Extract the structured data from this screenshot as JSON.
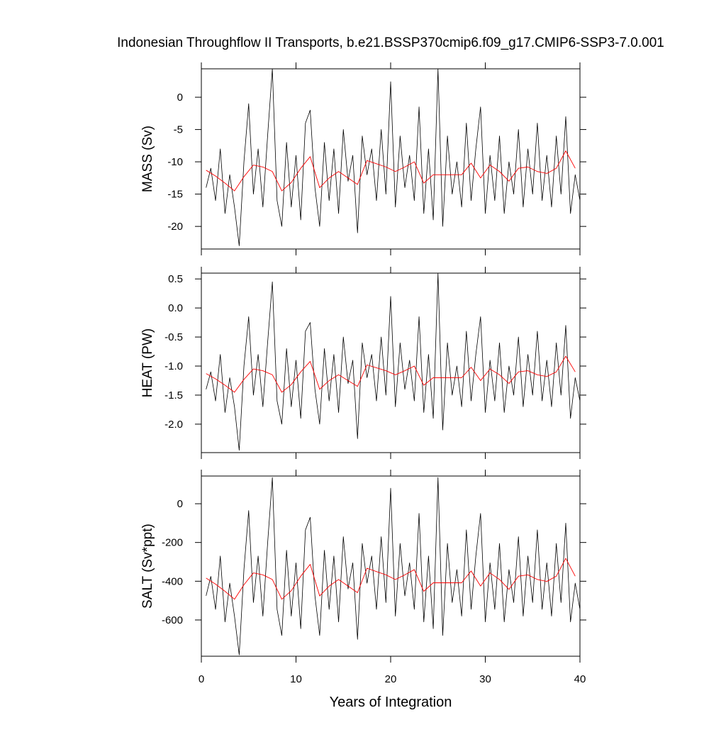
{
  "chart_data": [
    {
      "type": "line",
      "title": "Indonesian Throughflow II Transports, b.e21.BSSP370cmip6.f09_g17.CMIP6-SSP3-7.0.001",
      "ylabel": "MASS (Sv)",
      "xlim": [
        0,
        40
      ],
      "xticks": [
        0,
        10,
        20,
        30,
        40
      ],
      "ylim": [
        -23.5,
        4.4
      ],
      "yticks": [
        -20,
        -15,
        -10,
        -5,
        0
      ],
      "series": [
        {
          "color": "#000000",
          "x": [
            0.5,
            1,
            1.5,
            2,
            2.5,
            3,
            3.5,
            4,
            4.5,
            5,
            5.5,
            6,
            6.5,
            7,
            7.5,
            8,
            8.5,
            9,
            9.5,
            10,
            10.5,
            11,
            11.5,
            12,
            12.5,
            13,
            13.5,
            14,
            14.5,
            15,
            15.5,
            16,
            16.5,
            17,
            17.5,
            18,
            18.5,
            19,
            19.5,
            20,
            20.5,
            21,
            21.5,
            22,
            22.5,
            23,
            23.5,
            24,
            24.5,
            25,
            25.5,
            26,
            26.5,
            27,
            27.5,
            28,
            28.5,
            29,
            29.5,
            30,
            30.5,
            31,
            31.5,
            32,
            32.5,
            33,
            33.5,
            34,
            34.5,
            35,
            35.5,
            36,
            36.5,
            37,
            37.5,
            38,
            38.5,
            39,
            39.5,
            40
          ],
          "values": [
            -14,
            -11,
            -16,
            -8,
            -18,
            -12,
            -17,
            -23,
            -10,
            -1,
            -15,
            -8,
            -17,
            -6,
            4.4,
            -16,
            -20,
            -7,
            -17,
            -9,
            -19,
            -4,
            -2,
            -14,
            -20,
            -7,
            -16,
            -8,
            -18,
            -5,
            -13,
            -9,
            -21,
            -6,
            -12,
            -8,
            -16,
            -5,
            -15,
            2.4,
            -17,
            -6,
            -14,
            -9,
            -16,
            -1.5,
            -18,
            -8,
            -19,
            4.4,
            -20,
            -6,
            -15,
            -10,
            -17,
            -4,
            -16,
            -8,
            -1.5,
            -18,
            -9,
            -16,
            -6,
            -18,
            -10,
            -15,
            -5,
            -17,
            -8,
            -15,
            -4,
            -16,
            -9,
            -17,
            -6,
            -15,
            -3,
            -18,
            -12,
            -16
          ]
        },
        {
          "color": "#ff0000",
          "x": [
            0.5,
            1.5,
            2.5,
            3.5,
            4.5,
            5.5,
            6.5,
            7.5,
            8.5,
            9.5,
            10.5,
            11.5,
            12.5,
            13.5,
            14.5,
            15.5,
            16.5,
            17.5,
            18.5,
            19.5,
            20.5,
            21.5,
            22.5,
            23.5,
            24.5,
            25.5,
            26.5,
            27.5,
            28.5,
            29.5,
            30.5,
            31.5,
            32.5,
            33.5,
            34.5,
            35.5,
            36.5,
            37.5,
            38.5,
            39.5
          ],
          "values": [
            -11.3,
            -12.2,
            -13.3,
            -14.5,
            -12.3,
            -10.5,
            -10.8,
            -11.5,
            -14.5,
            -13.2,
            -11.0,
            -9.2,
            -14.0,
            -12.5,
            -11.5,
            -12.5,
            -13.5,
            -9.8,
            -10.3,
            -10.8,
            -11.5,
            -10.8,
            -10.0,
            -13.3,
            -12.0,
            -12.0,
            -12.0,
            -12.0,
            -10.2,
            -12.5,
            -10.5,
            -11.5,
            -13.0,
            -11.0,
            -10.8,
            -11.5,
            -11.8,
            -11.0,
            -8.3,
            -11.0
          ]
        }
      ]
    },
    {
      "type": "line",
      "ylabel": "HEAT (PW)",
      "xlim": [
        0,
        40
      ],
      "xticks": [
        0,
        10,
        20,
        30,
        40
      ],
      "ylim": [
        -2.49,
        0.6
      ],
      "yticks": [
        {
          "value": -2,
          "label": "-2.0"
        },
        -1.5,
        {
          "value": -1,
          "label": "-1.0"
        },
        -0.5,
        {
          "value": 0,
          "label": "0.0"
        },
        0.5
      ],
      "series": [
        {
          "color": "#000000",
          "x": [
            0.5,
            1,
            1.5,
            2,
            2.5,
            3,
            3.5,
            4,
            4.5,
            5,
            5.5,
            6,
            6.5,
            7,
            7.5,
            8,
            8.5,
            9,
            9.5,
            10,
            10.5,
            11,
            11.5,
            12,
            12.5,
            13,
            13.5,
            14,
            14.5,
            15,
            15.5,
            16,
            16.5,
            17,
            17.5,
            18,
            18.5,
            19,
            19.5,
            20,
            20.5,
            21,
            21.5,
            22,
            22.5,
            23,
            23.5,
            24,
            24.5,
            25,
            25.5,
            26,
            26.5,
            27,
            27.5,
            28,
            28.5,
            29,
            29.5,
            30,
            30.5,
            31,
            31.5,
            32,
            32.5,
            33,
            33.5,
            34,
            34.5,
            35,
            35.5,
            36,
            36.5,
            37,
            37.5,
            38,
            38.5,
            39,
            39.5,
            40
          ],
          "values": [
            -1.4,
            -1.1,
            -1.6,
            -0.8,
            -1.8,
            -1.2,
            -1.7,
            -2.45,
            -1.0,
            -0.15,
            -1.5,
            -0.8,
            -1.7,
            -0.6,
            0.45,
            -1.6,
            -2.0,
            -0.7,
            -1.7,
            -0.9,
            -1.9,
            -0.4,
            -0.25,
            -1.4,
            -2.0,
            -0.7,
            -1.6,
            -0.8,
            -1.8,
            -0.5,
            -1.3,
            -0.9,
            -2.25,
            -0.6,
            -1.2,
            -0.8,
            -1.6,
            -0.5,
            -1.5,
            0.2,
            -1.7,
            -0.6,
            -1.4,
            -0.9,
            -1.6,
            -0.15,
            -1.8,
            -0.8,
            -1.9,
            0.6,
            -2.1,
            -0.6,
            -1.5,
            -1.0,
            -1.7,
            -0.4,
            -1.6,
            -0.8,
            -0.15,
            -1.8,
            -0.9,
            -1.6,
            -0.6,
            -1.8,
            -1.0,
            -1.5,
            -0.5,
            -1.7,
            -0.8,
            -1.5,
            -0.4,
            -1.6,
            -0.9,
            -1.7,
            -0.6,
            -1.5,
            -0.3,
            -1.9,
            -1.2,
            -1.6
          ]
        },
        {
          "color": "#ff0000",
          "x": [
            0.5,
            1.5,
            2.5,
            3.5,
            4.5,
            5.5,
            6.5,
            7.5,
            8.5,
            9.5,
            10.5,
            11.5,
            12.5,
            13.5,
            14.5,
            15.5,
            16.5,
            17.5,
            18.5,
            19.5,
            20.5,
            21.5,
            22.5,
            23.5,
            24.5,
            25.5,
            26.5,
            27.5,
            28.5,
            29.5,
            30.5,
            31.5,
            32.5,
            33.5,
            34.5,
            35.5,
            36.5,
            37.5,
            38.5,
            39.5
          ],
          "values": [
            -1.13,
            -1.22,
            -1.33,
            -1.45,
            -1.23,
            -1.05,
            -1.08,
            -1.15,
            -1.45,
            -1.32,
            -1.1,
            -0.92,
            -1.4,
            -1.25,
            -1.15,
            -1.25,
            -1.35,
            -0.98,
            -1.03,
            -1.08,
            -1.15,
            -1.08,
            -1.0,
            -1.33,
            -1.2,
            -1.2,
            -1.2,
            -1.2,
            -1.02,
            -1.25,
            -1.05,
            -1.15,
            -1.3,
            -1.1,
            -1.08,
            -1.15,
            -1.18,
            -1.1,
            -0.83,
            -1.1
          ]
        }
      ]
    },
    {
      "type": "line",
      "ylabel": "SALT (Sv*ppt)",
      "xlabel": "Years of Integration",
      "xlim": [
        0,
        40
      ],
      "xticks": [
        0,
        10,
        20,
        30,
        40
      ],
      "ylim": [
        -787,
        143
      ],
      "yticks": [
        -600,
        -400,
        -200,
        0
      ],
      "series": [
        {
          "color": "#000000",
          "x": [
            0.5,
            1,
            1.5,
            2,
            2.5,
            3,
            3.5,
            4,
            4.5,
            5,
            5.5,
            6,
            6.5,
            7,
            7.5,
            8,
            8.5,
            9,
            9.5,
            10,
            10.5,
            11,
            11.5,
            12,
            12.5,
            13,
            13.5,
            14,
            14.5,
            15,
            15.5,
            16,
            16.5,
            17,
            17.5,
            18,
            18.5,
            19,
            19.5,
            20,
            20.5,
            21,
            21.5,
            22,
            22.5,
            23,
            23.5,
            24,
            24.5,
            25,
            25.5,
            26,
            26.5,
            27,
            27.5,
            28,
            28.5,
            29,
            29.5,
            30,
            30.5,
            31,
            31.5,
            32,
            32.5,
            33,
            33.5,
            34,
            34.5,
            35,
            35.5,
            36,
            36.5,
            37,
            37.5,
            38,
            38.5,
            39,
            39.5,
            40
          ],
          "values": [
            -475,
            -375,
            -545,
            -270,
            -610,
            -410,
            -580,
            -780,
            -340,
            -35,
            -510,
            -270,
            -580,
            -205,
            135,
            -545,
            -680,
            -240,
            -580,
            -305,
            -645,
            -135,
            -70,
            -475,
            -680,
            -240,
            -545,
            -270,
            -610,
            -170,
            -440,
            -305,
            -700,
            -205,
            -410,
            -270,
            -545,
            -170,
            -510,
            80,
            -580,
            -205,
            -475,
            -305,
            -545,
            -50,
            -610,
            -270,
            -645,
            135,
            -680,
            -205,
            -510,
            -340,
            -580,
            -135,
            -545,
            -270,
            -50,
            -610,
            -305,
            -545,
            -205,
            -610,
            -340,
            -510,
            -170,
            -580,
            -270,
            -510,
            -135,
            -545,
            -305,
            -580,
            -205,
            -510,
            -100,
            -610,
            -410,
            -545
          ]
        },
        {
          "color": "#ff0000",
          "x": [
            0.5,
            1.5,
            2.5,
            3.5,
            4.5,
            5.5,
            6.5,
            7.5,
            8.5,
            9.5,
            10.5,
            11.5,
            12.5,
            13.5,
            14.5,
            15.5,
            16.5,
            17.5,
            18.5,
            19.5,
            20.5,
            21.5,
            22.5,
            23.5,
            24.5,
            25.5,
            26.5,
            27.5,
            28.5,
            29.5,
            30.5,
            31.5,
            32.5,
            33.5,
            34.5,
            35.5,
            36.5,
            37.5,
            38.5,
            39.5
          ],
          "values": [
            -384,
            -415,
            -452,
            -493,
            -418,
            -357,
            -367,
            -391,
            -493,
            -449,
            -374,
            -313,
            -476,
            -425,
            -391,
            -425,
            -459,
            -333,
            -350,
            -367,
            -391,
            -367,
            -340,
            -452,
            -408,
            -408,
            -408,
            -408,
            -347,
            -425,
            -357,
            -391,
            -442,
            -374,
            -367,
            -391,
            -401,
            -374,
            -282,
            -374
          ]
        }
      ]
    }
  ]
}
